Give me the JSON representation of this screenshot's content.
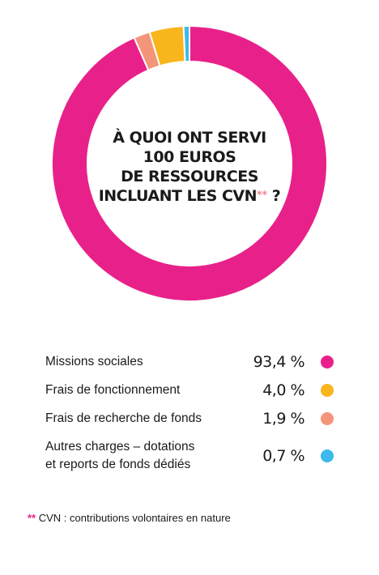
{
  "chart_data": {
    "type": "pie",
    "variant": "donut",
    "title_lines": [
      "À QUOI ONT SERVI",
      "100 EUROS",
      "DE RESSOURCES"
    ],
    "title_last_line": "INCLUANT LES CVN",
    "title_stars": "**",
    "title_end": "?",
    "categories": [
      "Missions sociales",
      "Frais de fonctionnement",
      "Frais de recherche de fonds",
      "Autres charges – dotations et reports de fonds dédiés"
    ],
    "values": [
      93.4,
      4.0,
      1.9,
      0.7
    ],
    "colors": [
      "#e8218a",
      "#f9b51c",
      "#f4957a",
      "#3db9ec"
    ],
    "value_labels": [
      "93,4 %",
      "4,0 %",
      "1,9 %",
      "0,7 %"
    ]
  },
  "legend": [
    {
      "label": "Missions sociales",
      "value": "93,4 %"
    },
    {
      "label": "Frais de fonctionnement",
      "value": "4,0 %"
    },
    {
      "label": "Frais de recherche de fonds",
      "value": "1,9 %"
    },
    {
      "label_line1": "Autres charges – dotations",
      "label_line2": "et reports de fonds dédiés",
      "value": "0,7 %"
    }
  ],
  "footnote": {
    "stars": "**",
    "text": " CVN : contributions volontaires en nature"
  }
}
